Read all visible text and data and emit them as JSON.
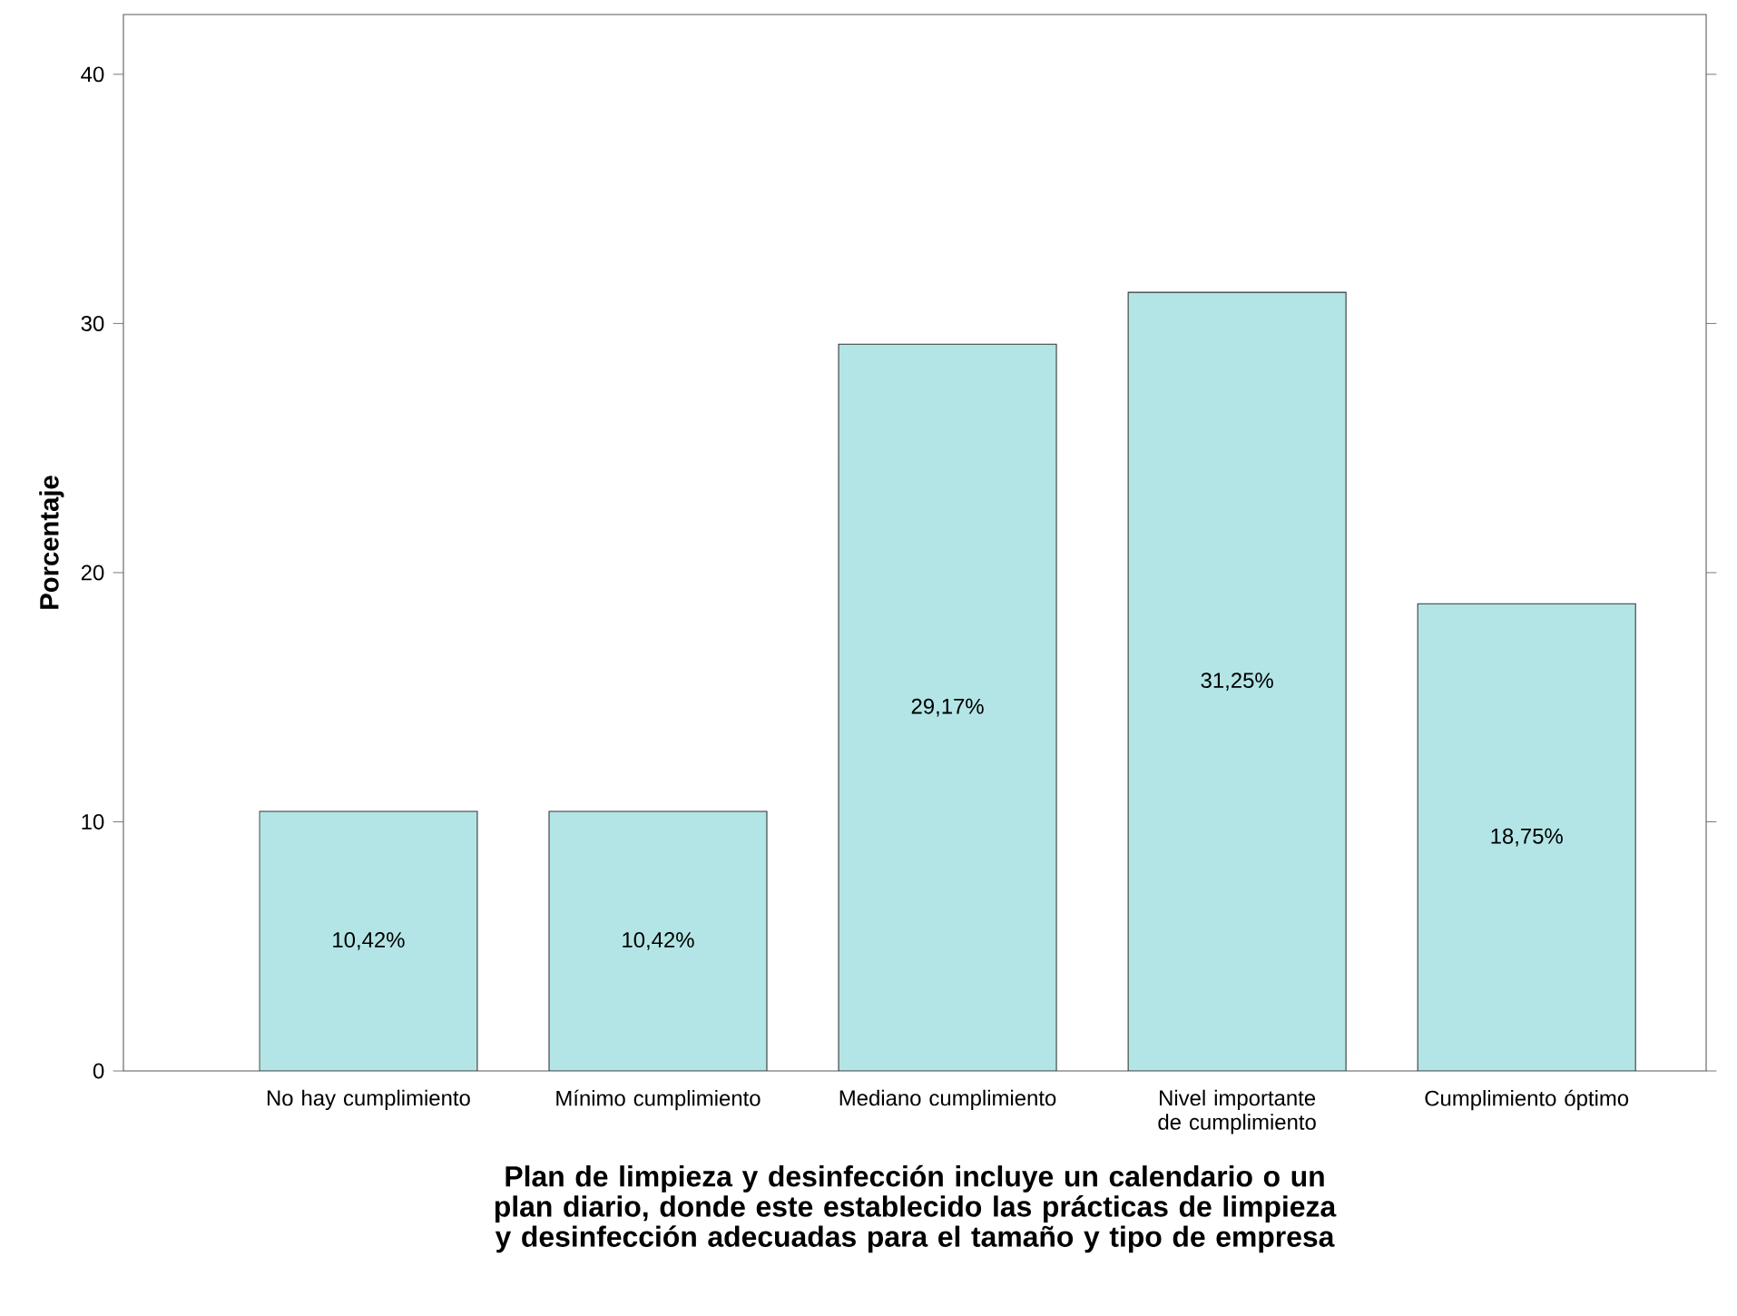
{
  "chart_data": {
    "type": "bar",
    "xlabel": "Plan de limpieza y desinfección incluye un calendario o un plan diario, donde este establecido las prácticas de limpieza y desinfección adecuadas para el tamaño y tipo de empresa",
    "ylabel": "Porcentaje",
    "categories": [
      "No hay cumplimiento",
      "Mínimo cumplimiento",
      "Mediano cumplimiento",
      "Nivel importante de cumplimiento",
      "Cumplimiento óptimo"
    ],
    "values": [
      10.42,
      10.42,
      29.17,
      31.25,
      18.75
    ],
    "value_labels": [
      "10,42%",
      "10,42%",
      "29,17%",
      "31,25%",
      "18,75%"
    ],
    "color": "#b3e5e6",
    "ylim": [
      0,
      42.4
    ],
    "yticks": [
      0,
      10,
      20,
      30,
      40
    ]
  }
}
